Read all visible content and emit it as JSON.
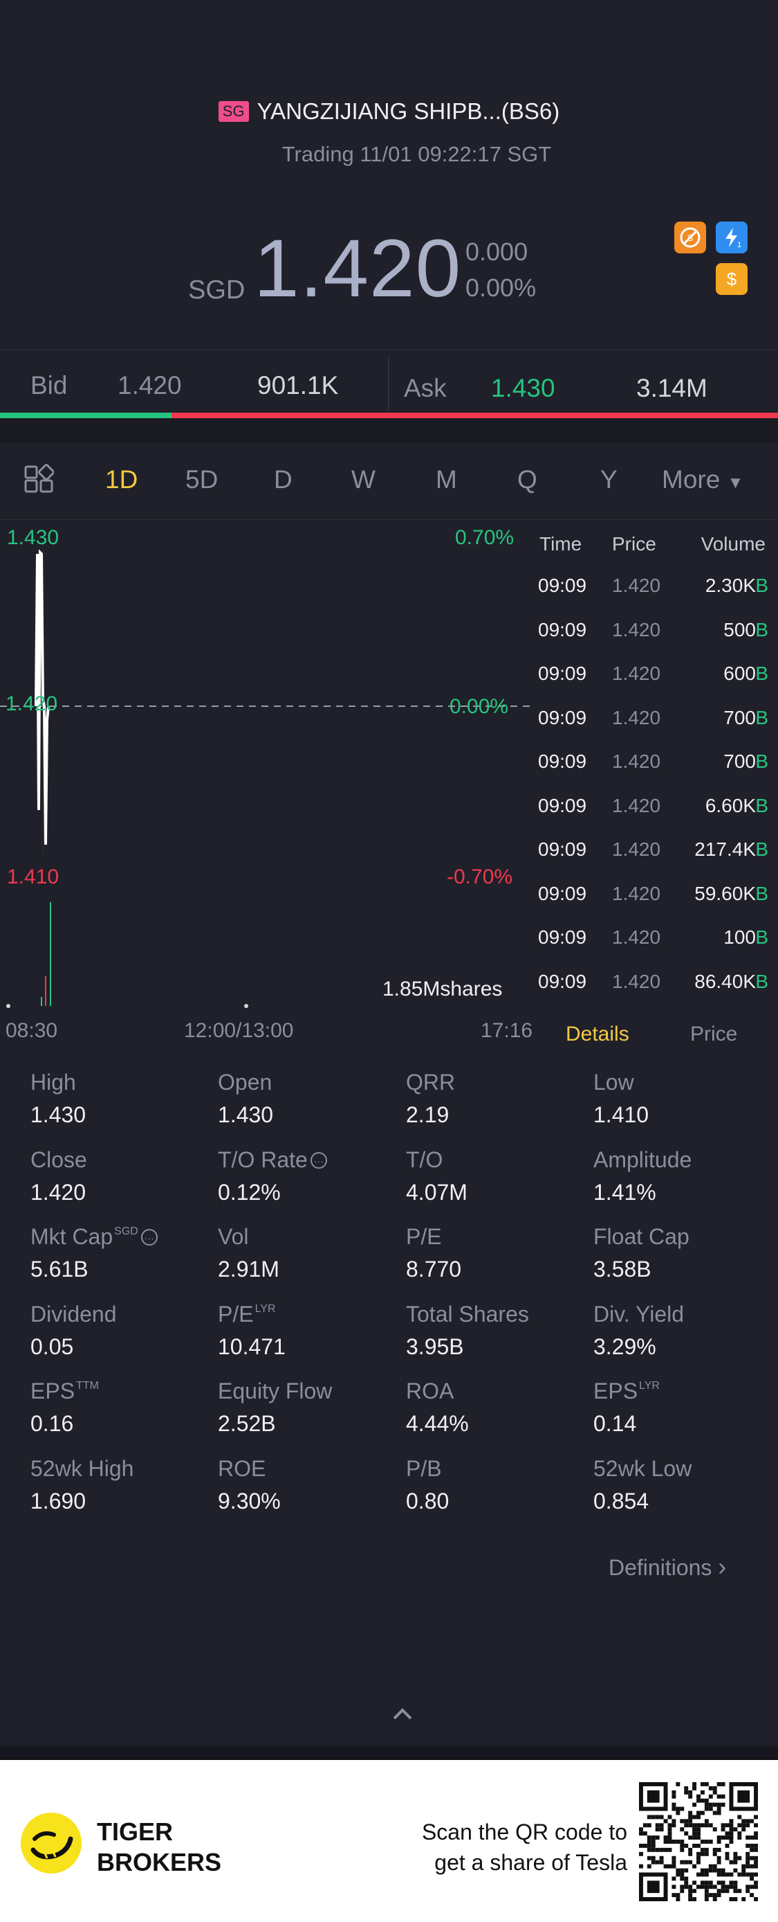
{
  "header": {
    "market_badge": "SG",
    "title": "YANGZIJIANG SHIPB...(BS6)",
    "status": "Trading 11/01 09:22:17 SGT",
    "currency": "SGD",
    "price": "1.420",
    "change": "0.000",
    "change_pct": "0.00%",
    "badges": [
      "no-short-icon",
      "lightning-1-icon",
      "dollar-icon"
    ]
  },
  "bidask": {
    "bid_label": "Bid",
    "bid_price": "1.420",
    "bid_size": "901.1K",
    "ask_label": "Ask",
    "ask_price": "1.430",
    "ask_size": "3.14M",
    "bid_fraction": 0.22
  },
  "tabs": {
    "items": [
      "1D",
      "5D",
      "D",
      "W",
      "M",
      "Q",
      "Y"
    ],
    "more": "More",
    "active": "1D"
  },
  "chart_data": {
    "type": "line",
    "y_top": "1.430",
    "y_mid": "1.420",
    "y_bottom": "1.410",
    "pct_top": "0.70%",
    "pct_mid": "0.00%",
    "pct_bottom": "-0.70%",
    "ylim": [
      1.41,
      1.43
    ],
    "x_labels": [
      "08:30",
      "12:00/13:00",
      "17:16"
    ],
    "volume_label": "1.85Mshares"
  },
  "trades": {
    "headers": {
      "time": "Time",
      "price": "Price",
      "volume": "Volume"
    },
    "rows": [
      {
        "time": "09:09",
        "price": "1.420",
        "volume": "2.30K",
        "side": "B"
      },
      {
        "time": "09:09",
        "price": "1.420",
        "volume": "500",
        "side": "B"
      },
      {
        "time": "09:09",
        "price": "1.420",
        "volume": "600",
        "side": "B"
      },
      {
        "time": "09:09",
        "price": "1.420",
        "volume": "700",
        "side": "B"
      },
      {
        "time": "09:09",
        "price": "1.420",
        "volume": "700",
        "side": "B"
      },
      {
        "time": "09:09",
        "price": "1.420",
        "volume": "6.60K",
        "side": "B"
      },
      {
        "time": "09:09",
        "price": "1.420",
        "volume": "217.4K",
        "side": "B"
      },
      {
        "time": "09:09",
        "price": "1.420",
        "volume": "59.60K",
        "side": "B"
      },
      {
        "time": "09:09",
        "price": "1.420",
        "volume": "100",
        "side": "B"
      },
      {
        "time": "09:09",
        "price": "1.420",
        "volume": "86.40K",
        "side": "B"
      }
    ],
    "tab_details": "Details",
    "tab_price": "Price"
  },
  "stats": [
    {
      "label": "High",
      "value": "1.430"
    },
    {
      "label": "Open",
      "value": "1.430"
    },
    {
      "label": "QRR",
      "value": "2.19"
    },
    {
      "label": "Low",
      "value": "1.410"
    },
    {
      "label": "Close",
      "value": "1.420"
    },
    {
      "label": "T/O Rate",
      "value": "0.12%",
      "info": true
    },
    {
      "label": "T/O",
      "value": "4.07M"
    },
    {
      "label": "Amplitude",
      "value": "1.41%"
    },
    {
      "label": "Mkt Cap",
      "value": "5.61B",
      "sup": "SGD",
      "info": true
    },
    {
      "label": "Vol",
      "value": "2.91M"
    },
    {
      "label": "P/E",
      "value": "8.770"
    },
    {
      "label": "Float Cap",
      "value": "3.58B"
    },
    {
      "label": "Dividend",
      "value": "0.05"
    },
    {
      "label": "P/E",
      "value": "10.471",
      "sup": "LYR"
    },
    {
      "label": "Total Shares",
      "value": "3.95B"
    },
    {
      "label": "Div. Yield",
      "value": "3.29%"
    },
    {
      "label": "EPS",
      "value": "0.16",
      "sup": "TTM"
    },
    {
      "label": "Equity Flow",
      "value": "2.52B"
    },
    {
      "label": "ROA",
      "value": "4.44%"
    },
    {
      "label": "EPS",
      "value": "0.14",
      "sup": "LYR"
    },
    {
      "label": "52wk High",
      "value": "1.690"
    },
    {
      "label": "ROE",
      "value": "9.30%"
    },
    {
      "label": "P/B",
      "value": "0.80"
    },
    {
      "label": "52wk Low",
      "value": "0.854"
    }
  ],
  "definitions_link": "Definitions",
  "footer": {
    "brand_line1": "TIGER",
    "brand_line2": "BROKERS",
    "cta_line1": "Scan the QR code to",
    "cta_line2": "get a share of Tesla"
  }
}
